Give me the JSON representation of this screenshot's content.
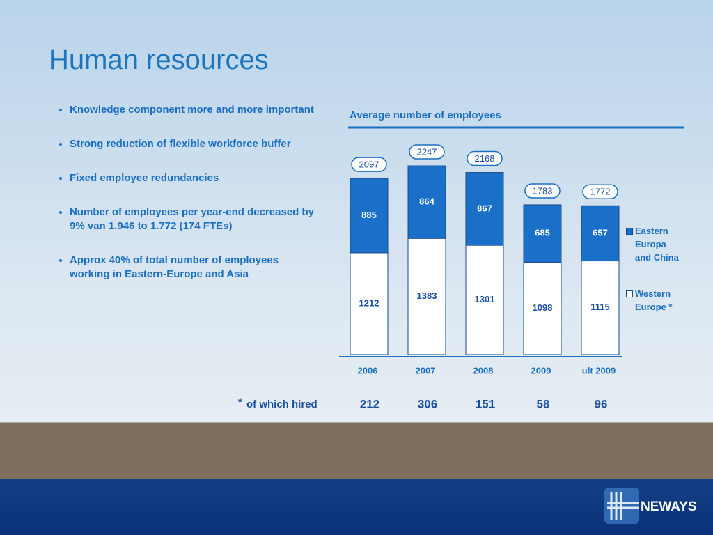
{
  "header": {
    "title": "Human resources"
  },
  "bullets": [
    "Knowledge component more and more important",
    "Strong reduction of flexible workforce buffer",
    "Fixed employee redundancies",
    "Number of employees per year-end decreased by 9% van 1.946 to 1.772 (174 FTEs)",
    "Approx 40% of total number of employees working in Eastern-Europe and Asia"
  ],
  "chart_data": {
    "type": "bar",
    "stacked": true,
    "title": "Average number of employees",
    "categories": [
      "2006",
      "2007",
      "2008",
      "2009",
      "ult 2009"
    ],
    "series": [
      {
        "name": "Western Europe *",
        "color": "#ffffff",
        "values": [
          1212,
          1383,
          1301,
          1098,
          1115
        ]
      },
      {
        "name": "Eastern Europa and China",
        "color": "#1a6fc8",
        "values": [
          885,
          864,
          867,
          685,
          657
        ]
      }
    ],
    "totals": [
      2097,
      2247,
      2168,
      1783,
      1772
    ]
  },
  "footnote": {
    "marker": "*",
    "label": "of which hired",
    "values": [
      212,
      306,
      151,
      58,
      96
    ]
  },
  "logo": {
    "text": "NEWAYS"
  }
}
